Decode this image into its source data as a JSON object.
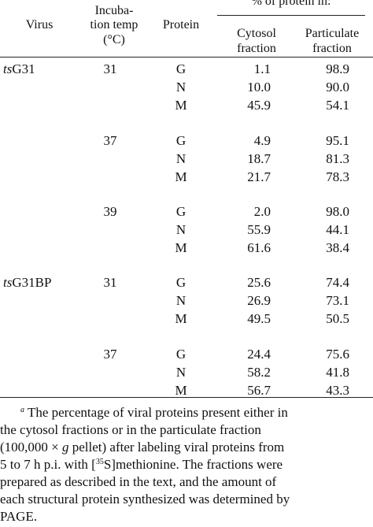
{
  "headers": {
    "virus": "Virus",
    "incubation_line1": "Incuba-",
    "incubation_line2": "tion temp",
    "incubation_line3": "(°C)",
    "protein": "Protein",
    "percent_group": "% of protein in:",
    "cytosol_line1": "Cytosol",
    "cytosol_line2": "fraction",
    "particulate_line1": "Particulate",
    "particulate_line2": "fraction"
  },
  "rows": [
    {
      "virus_prefix": "ts",
      "virus_name": "G31",
      "temp": "31",
      "protein": "G",
      "cytosol": "1.1",
      "particulate": "98.9"
    },
    {
      "virus_prefix": "",
      "virus_name": "",
      "temp": "",
      "protein": "N",
      "cytosol": "10.0",
      "particulate": "90.0"
    },
    {
      "virus_prefix": "",
      "virus_name": "",
      "temp": "",
      "protein": "M",
      "cytosol": "45.9",
      "particulate": "54.1"
    },
    {
      "virus_prefix": "",
      "virus_name": "",
      "temp": "37",
      "protein": "G",
      "cytosol": "4.9",
      "particulate": "95.1"
    },
    {
      "virus_prefix": "",
      "virus_name": "",
      "temp": "",
      "protein": "N",
      "cytosol": "18.7",
      "particulate": "81.3"
    },
    {
      "virus_prefix": "",
      "virus_name": "",
      "temp": "",
      "protein": "M",
      "cytosol": "21.7",
      "particulate": "78.3"
    },
    {
      "virus_prefix": "",
      "virus_name": "",
      "temp": "39",
      "protein": "G",
      "cytosol": "2.0",
      "particulate": "98.0"
    },
    {
      "virus_prefix": "",
      "virus_name": "",
      "temp": "",
      "protein": "N",
      "cytosol": "55.9",
      "particulate": "44.1"
    },
    {
      "virus_prefix": "",
      "virus_name": "",
      "temp": "",
      "protein": "M",
      "cytosol": "61.6",
      "particulate": "38.4"
    },
    {
      "virus_prefix": "ts",
      "virus_name": "G31BP",
      "temp": "31",
      "protein": "G",
      "cytosol": "25.6",
      "particulate": "74.4"
    },
    {
      "virus_prefix": "",
      "virus_name": "",
      "temp": "",
      "protein": "N",
      "cytosol": "26.9",
      "particulate": "73.1"
    },
    {
      "virus_prefix": "",
      "virus_name": "",
      "temp": "",
      "protein": "M",
      "cytosol": "49.5",
      "particulate": "50.5"
    },
    {
      "virus_prefix": "",
      "virus_name": "",
      "temp": "37",
      "protein": "G",
      "cytosol": "24.4",
      "particulate": "75.6"
    },
    {
      "virus_prefix": "",
      "virus_name": "",
      "temp": "",
      "protein": "N",
      "cytosol": "58.2",
      "particulate": "41.8"
    },
    {
      "virus_prefix": "",
      "virus_name": "",
      "temp": "",
      "protein": "M",
      "cytosol": "56.7",
      "particulate": "43.3"
    }
  ],
  "footnote": {
    "marker": "a",
    "line1": " The percentage of viral proteins present either in",
    "line2": "the cytosol fractions or in the particulate fraction",
    "line3a": "(100,000 × ",
    "line3_g": "g",
    "line3b": " pellet) after labeling viral proteins from",
    "line4a": "5 to 7 h p.i. with [",
    "line4_sup": "35",
    "line4b": "S]methionine. The fractions were",
    "line5": "prepared as described in the text, and the amount of",
    "line6": "each structural protein synthesized was determined by",
    "line7": "PAGE."
  }
}
